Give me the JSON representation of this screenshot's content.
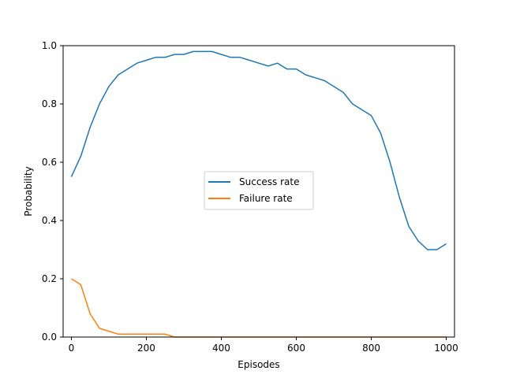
{
  "chart_data": {
    "type": "line",
    "title": "",
    "xlabel": "Episodes",
    "ylabel": "Probability",
    "xlim": [
      -22,
      1022
    ],
    "ylim": [
      0,
      1
    ],
    "xticks": [
      0,
      200,
      400,
      600,
      800,
      1000
    ],
    "xtick_labels": [
      "0",
      "200",
      "400",
      "600",
      "800",
      "1000"
    ],
    "yticks": [
      0,
      0.2,
      0.4,
      0.6,
      0.8,
      1.0
    ],
    "ytick_labels": [
      "0.0",
      "0.2",
      "0.4",
      "0.6",
      "0.8",
      "1.0"
    ],
    "grid": false,
    "legend_position": "center",
    "x_start": 0,
    "x_step": 25,
    "series": [
      {
        "name": "Success rate",
        "color": "#1f77b4",
        "values": [
          0.55,
          0.62,
          0.72,
          0.8,
          0.86,
          0.9,
          0.92,
          0.94,
          0.95,
          0.96,
          0.96,
          0.97,
          0.97,
          0.98,
          0.98,
          0.98,
          0.97,
          0.96,
          0.96,
          0.95,
          0.94,
          0.93,
          0.94,
          0.92,
          0.92,
          0.9,
          0.89,
          0.88,
          0.86,
          0.84,
          0.8,
          0.78,
          0.76,
          0.7,
          0.6,
          0.48,
          0.38,
          0.33,
          0.3,
          0.3,
          0.32
        ]
      },
      {
        "name": "Failure rate",
        "color": "#ff7f0e",
        "values": [
          0.2,
          0.18,
          0.08,
          0.03,
          0.02,
          0.01,
          0.01,
          0.01,
          0.01,
          0.01,
          0.01,
          0.0,
          0.0,
          0.0,
          0.0,
          0.0,
          0.0,
          0.0,
          0.0,
          0.0,
          0.0,
          0.0,
          0.0,
          0.0,
          0.0,
          0.0,
          0.0,
          0.0,
          0.0,
          0.0,
          0.0,
          0.0,
          0.0,
          0.0,
          0.0,
          0.0,
          0.0,
          0.0,
          0.0,
          0.0,
          0.0
        ]
      }
    ]
  }
}
